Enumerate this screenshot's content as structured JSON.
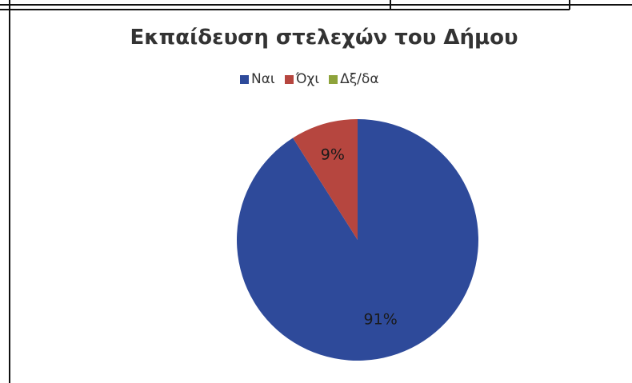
{
  "chart_data": {
    "type": "pie",
    "title": "Εκπαίδευση στελεχών του Δήμου",
    "legend_position": "top",
    "categories": [
      "Ναι",
      "Όχι",
      "Δξ/δα"
    ],
    "values": [
      91,
      9,
      0
    ],
    "value_labels": [
      "91%",
      "9%",
      ""
    ],
    "colors": [
      "#2e4a9a",
      "#b6463f",
      "#8ea33b"
    ]
  }
}
